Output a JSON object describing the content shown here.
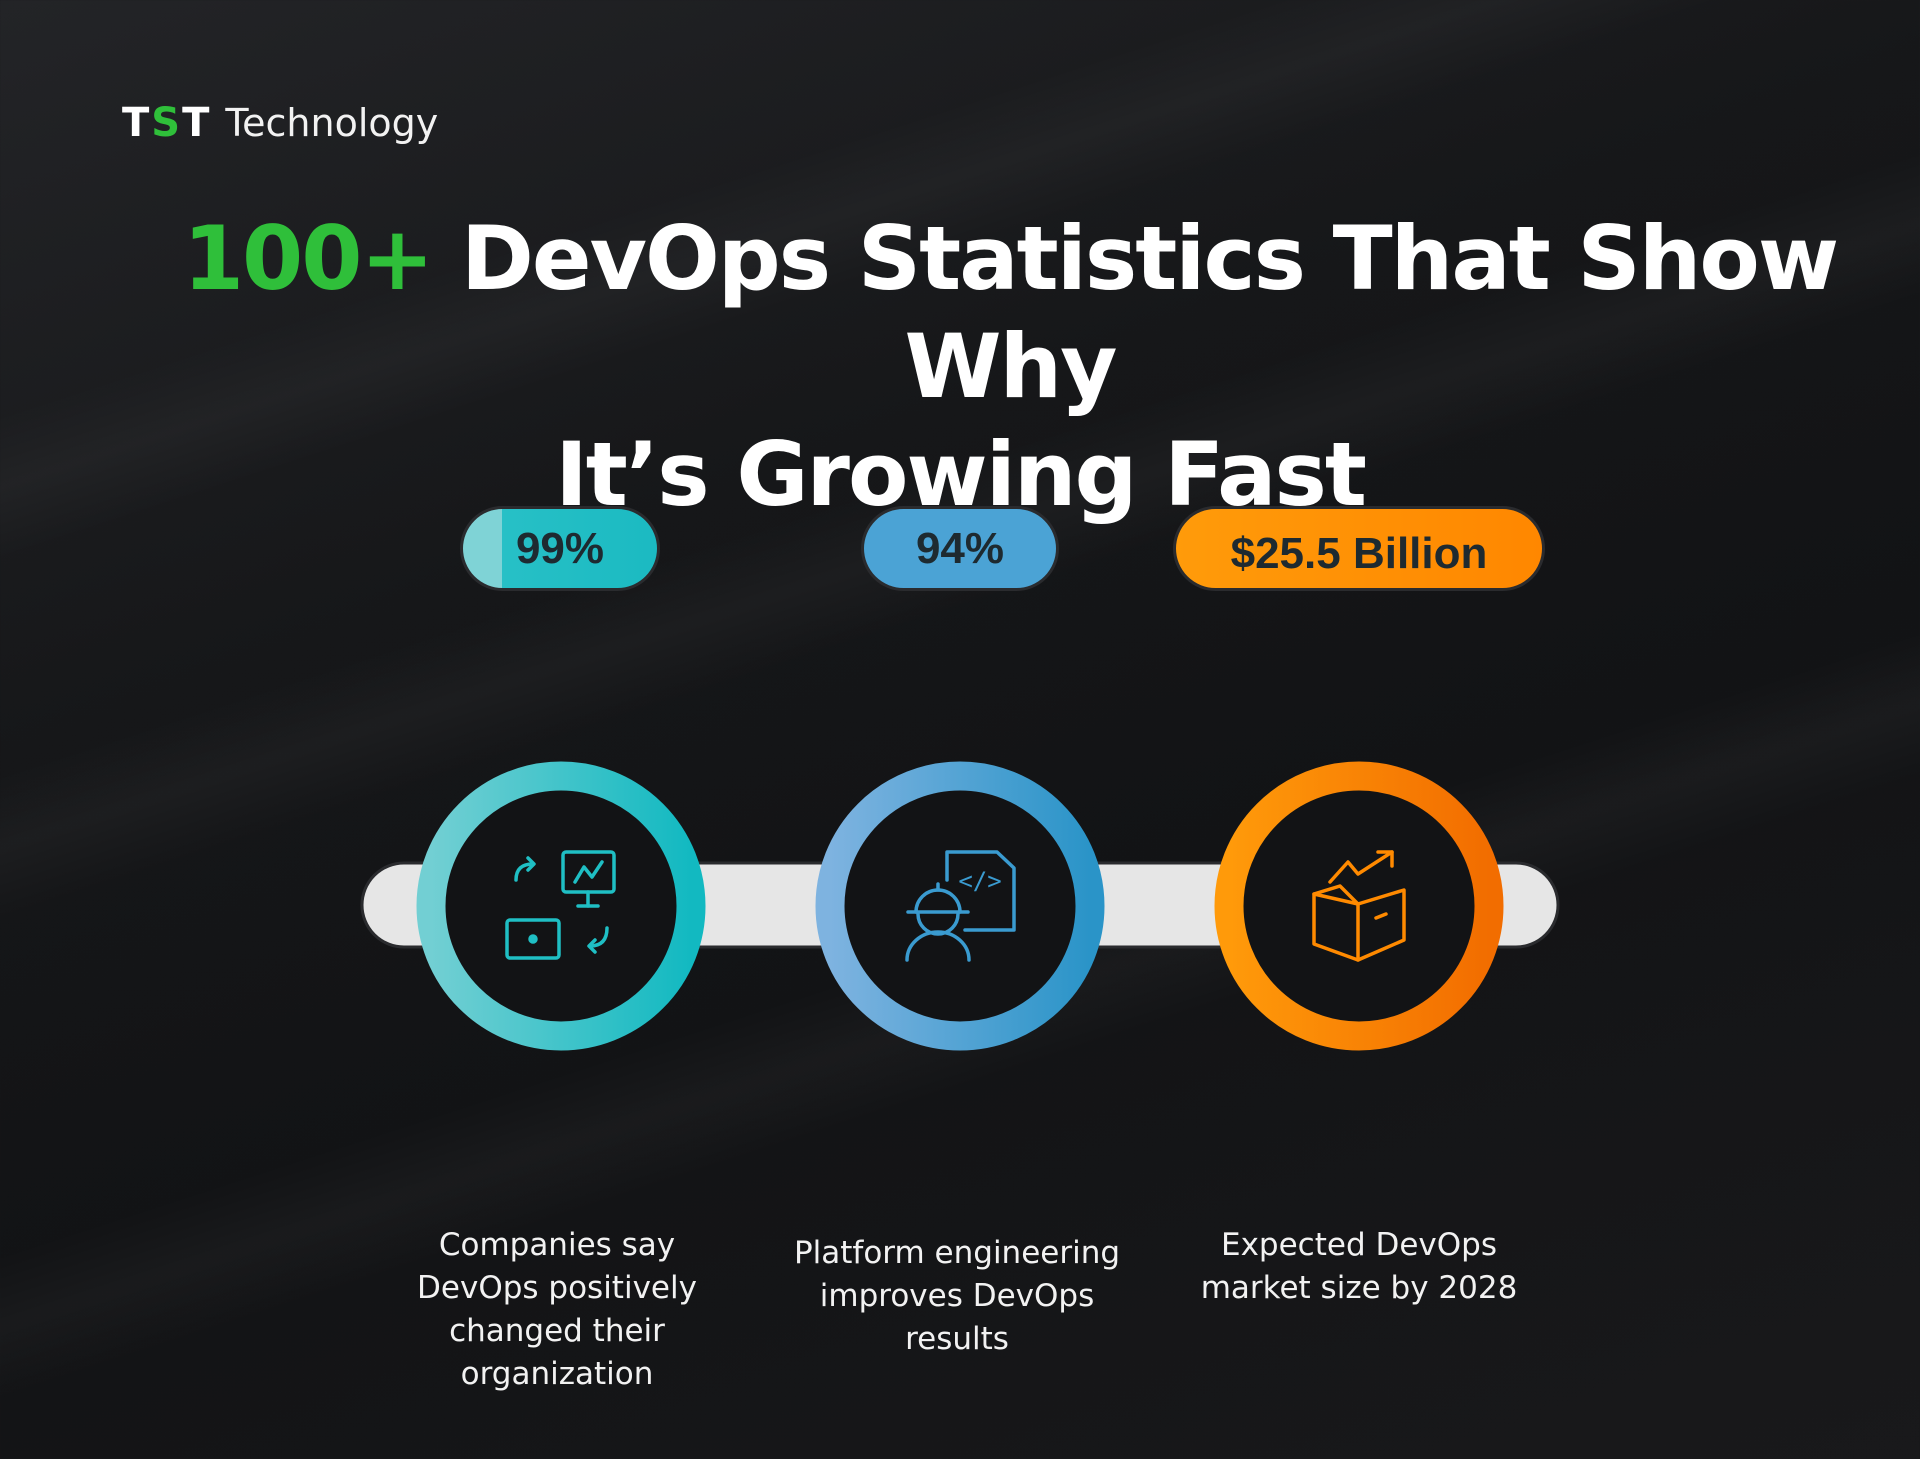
{
  "brand": {
    "mark_left": "T",
    "mark_mid": "S",
    "mark_right": "T",
    "name": "Technology"
  },
  "title": {
    "highlight": "100+",
    "line1_rest": " DevOps Statistics That Show Why",
    "line2": "It’s Growing Fast"
  },
  "colors": {
    "accent_green": "#2fbf3a",
    "teal": "#1fbfc4",
    "blue": "#3a9bd0",
    "orange": "#ff8a00",
    "bar": "#e6e6e6"
  },
  "stats": [
    {
      "value": "99%",
      "description": "Companies say DevOps positively changed their organization",
      "icon": "devops-cycle-icon"
    },
    {
      "value": "94%",
      "description": "Platform engineering improves DevOps results",
      "icon": "engineer-code-icon"
    },
    {
      "value": "$25.5 Billion",
      "description": "Expected DevOps market size by 2028",
      "icon": "growth-box-icon"
    }
  ]
}
